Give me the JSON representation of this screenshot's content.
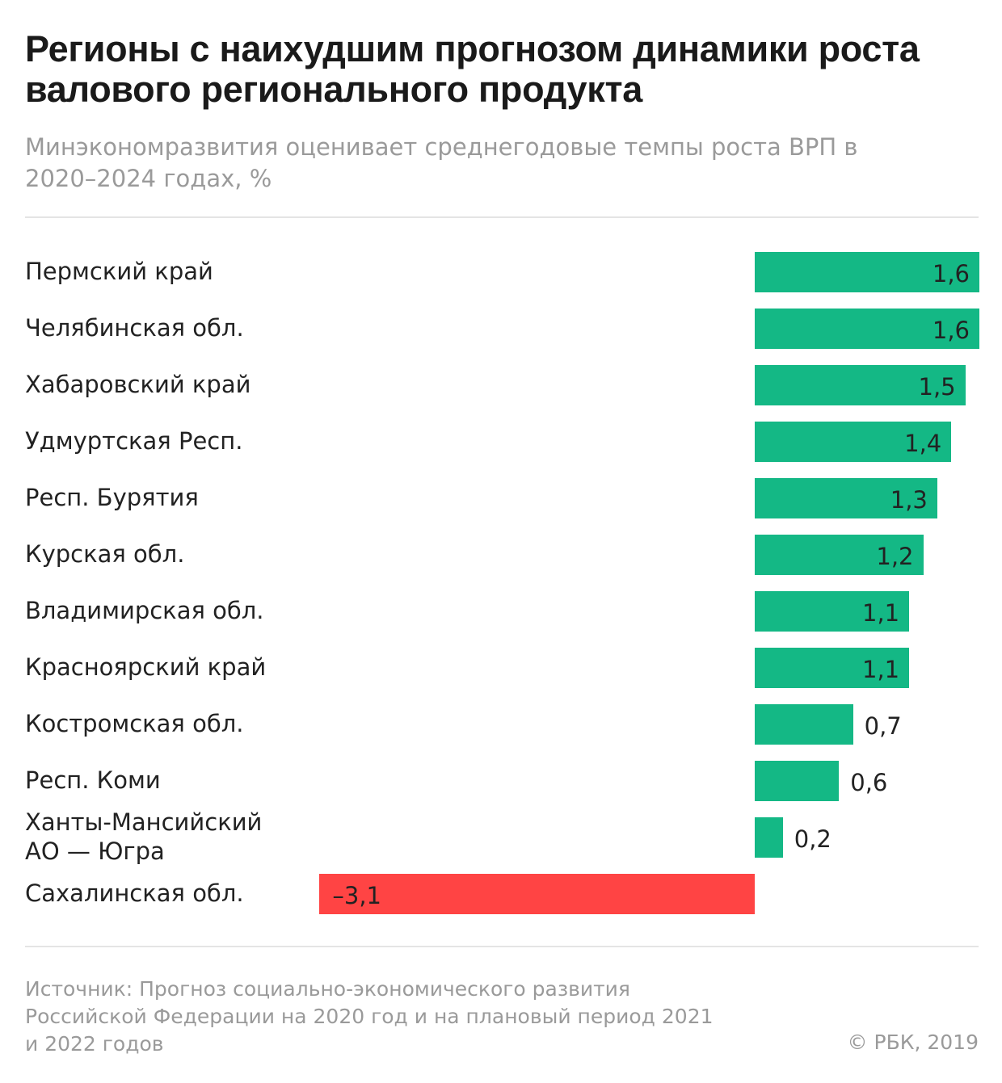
{
  "title": "Регионы с наихудшим прогнозом динамики роста валового регионального продукта",
  "subtitle": "Минэкономразвития оценивает среднегодовые темпы роста ВРП в 2020–2024 годах, %",
  "source": "Источник: Прогноз социально-экономического развития Российской Федерации на 2020 год и на плановый период 2021 и 2022 годов",
  "copyright": "© РБК, 2019",
  "chart_data": {
    "type": "bar",
    "orientation": "horizontal",
    "title": "Регионы с наихудшим прогнозом динамики роста валового регионального продукта",
    "subtitle": "Минэкономразвития оценивает среднегодовые темпы роста ВРП в 2020–2024 годах, %",
    "categories": [
      "Пермский край",
      "Челябинская обл.",
      "Хабаровский край",
      "Удмуртская Респ.",
      "Респ. Бурятия",
      "Курская обл.",
      "Владимирская обл.",
      "Красноярский край",
      "Костромская обл.",
      "Респ. Коми",
      "Ханты-Мансийский АО — Югра",
      "Сахалинская обл."
    ],
    "values": [
      1.6,
      1.6,
      1.5,
      1.4,
      1.3,
      1.2,
      1.1,
      1.1,
      0.7,
      0.6,
      0.2,
      -3.1
    ],
    "value_labels": [
      "1,6",
      "1,6",
      "1,5",
      "1,4",
      "1,3",
      "1,2",
      "1,1",
      "1,1",
      "0,7",
      "0,6",
      "0,2",
      "–3,1"
    ],
    "xlim": [
      -3.1,
      1.6
    ],
    "grid": false,
    "colors": {
      "positive": "#14b885",
      "negative": "#ff4444"
    }
  }
}
